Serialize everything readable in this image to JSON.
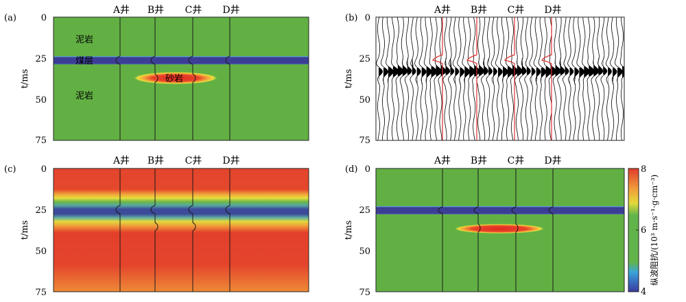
{
  "chart_data": [
    {
      "panel": "(a)",
      "type": "heatmap",
      "subject": "impedance model",
      "ylabel": "t/ms",
      "ylim": [
        0,
        75
      ],
      "yticks": [
        0,
        25,
        50,
        75
      ],
      "wells": [
        "A井",
        "B井",
        "C井",
        "D井"
      ],
      "annotations": [
        "泥岩",
        "煤层",
        "砂岩",
        "泥岩"
      ],
      "layers": [
        {
          "name": "泥岩",
          "impedance": 6.3
        },
        {
          "name": "煤层",
          "t_top": 23.5,
          "t_bottom": 27.0,
          "impedance": 4.0
        },
        {
          "name": "砂岩",
          "t_center": 37.0,
          "thickness": 3.5,
          "impedance": 8.0
        },
        {
          "name": "泥岩",
          "impedance": 6.3
        }
      ]
    },
    {
      "panel": "(b)",
      "type": "line",
      "subject": "synthetic seismic wiggle section with well-log overlays (red)",
      "ylabel": "t/ms",
      "ylim": [
        0,
        75
      ],
      "yticks": [
        0,
        25,
        50,
        75
      ],
      "wells": [
        "A井",
        "B井",
        "C井",
        "D井"
      ],
      "strong_event_ms": 33,
      "colors": {
        "traces": "#000000",
        "well_curves": "#e03030"
      }
    },
    {
      "panel": "(c)",
      "type": "heatmap",
      "subject": "low-frequency initial model",
      "ylabel": "t/ms",
      "ylim": [
        0,
        75
      ],
      "yticks": [
        0,
        25,
        50,
        75
      ],
      "wells": [
        "A井",
        "B井",
        "C井",
        "D井"
      ]
    },
    {
      "panel": "(d)",
      "type": "heatmap",
      "subject": "inversion result",
      "ylabel": "t/ms",
      "ylim": [
        0,
        75
      ],
      "yticks": [
        0,
        25,
        50,
        75
      ],
      "wells": [
        "A井",
        "B井",
        "C井",
        "D井"
      ],
      "colorbar": {
        "label": "纵波阻抗/(10³ m·s⁻¹·g·cm⁻³)",
        "ticks": [
          4,
          6,
          8
        ],
        "range": [
          4,
          8
        ],
        "colors": [
          "#3b3b9c",
          "#3aa6d9",
          "#62b44a",
          "#62b44a",
          "#e4d93a",
          "#f09a3a",
          "#e03b2b"
        ]
      }
    }
  ],
  "colors": {
    "mudstone": "#62b044",
    "coal": "#3c3d94",
    "sand_core": "#e32a22",
    "high": "#e2412c"
  }
}
